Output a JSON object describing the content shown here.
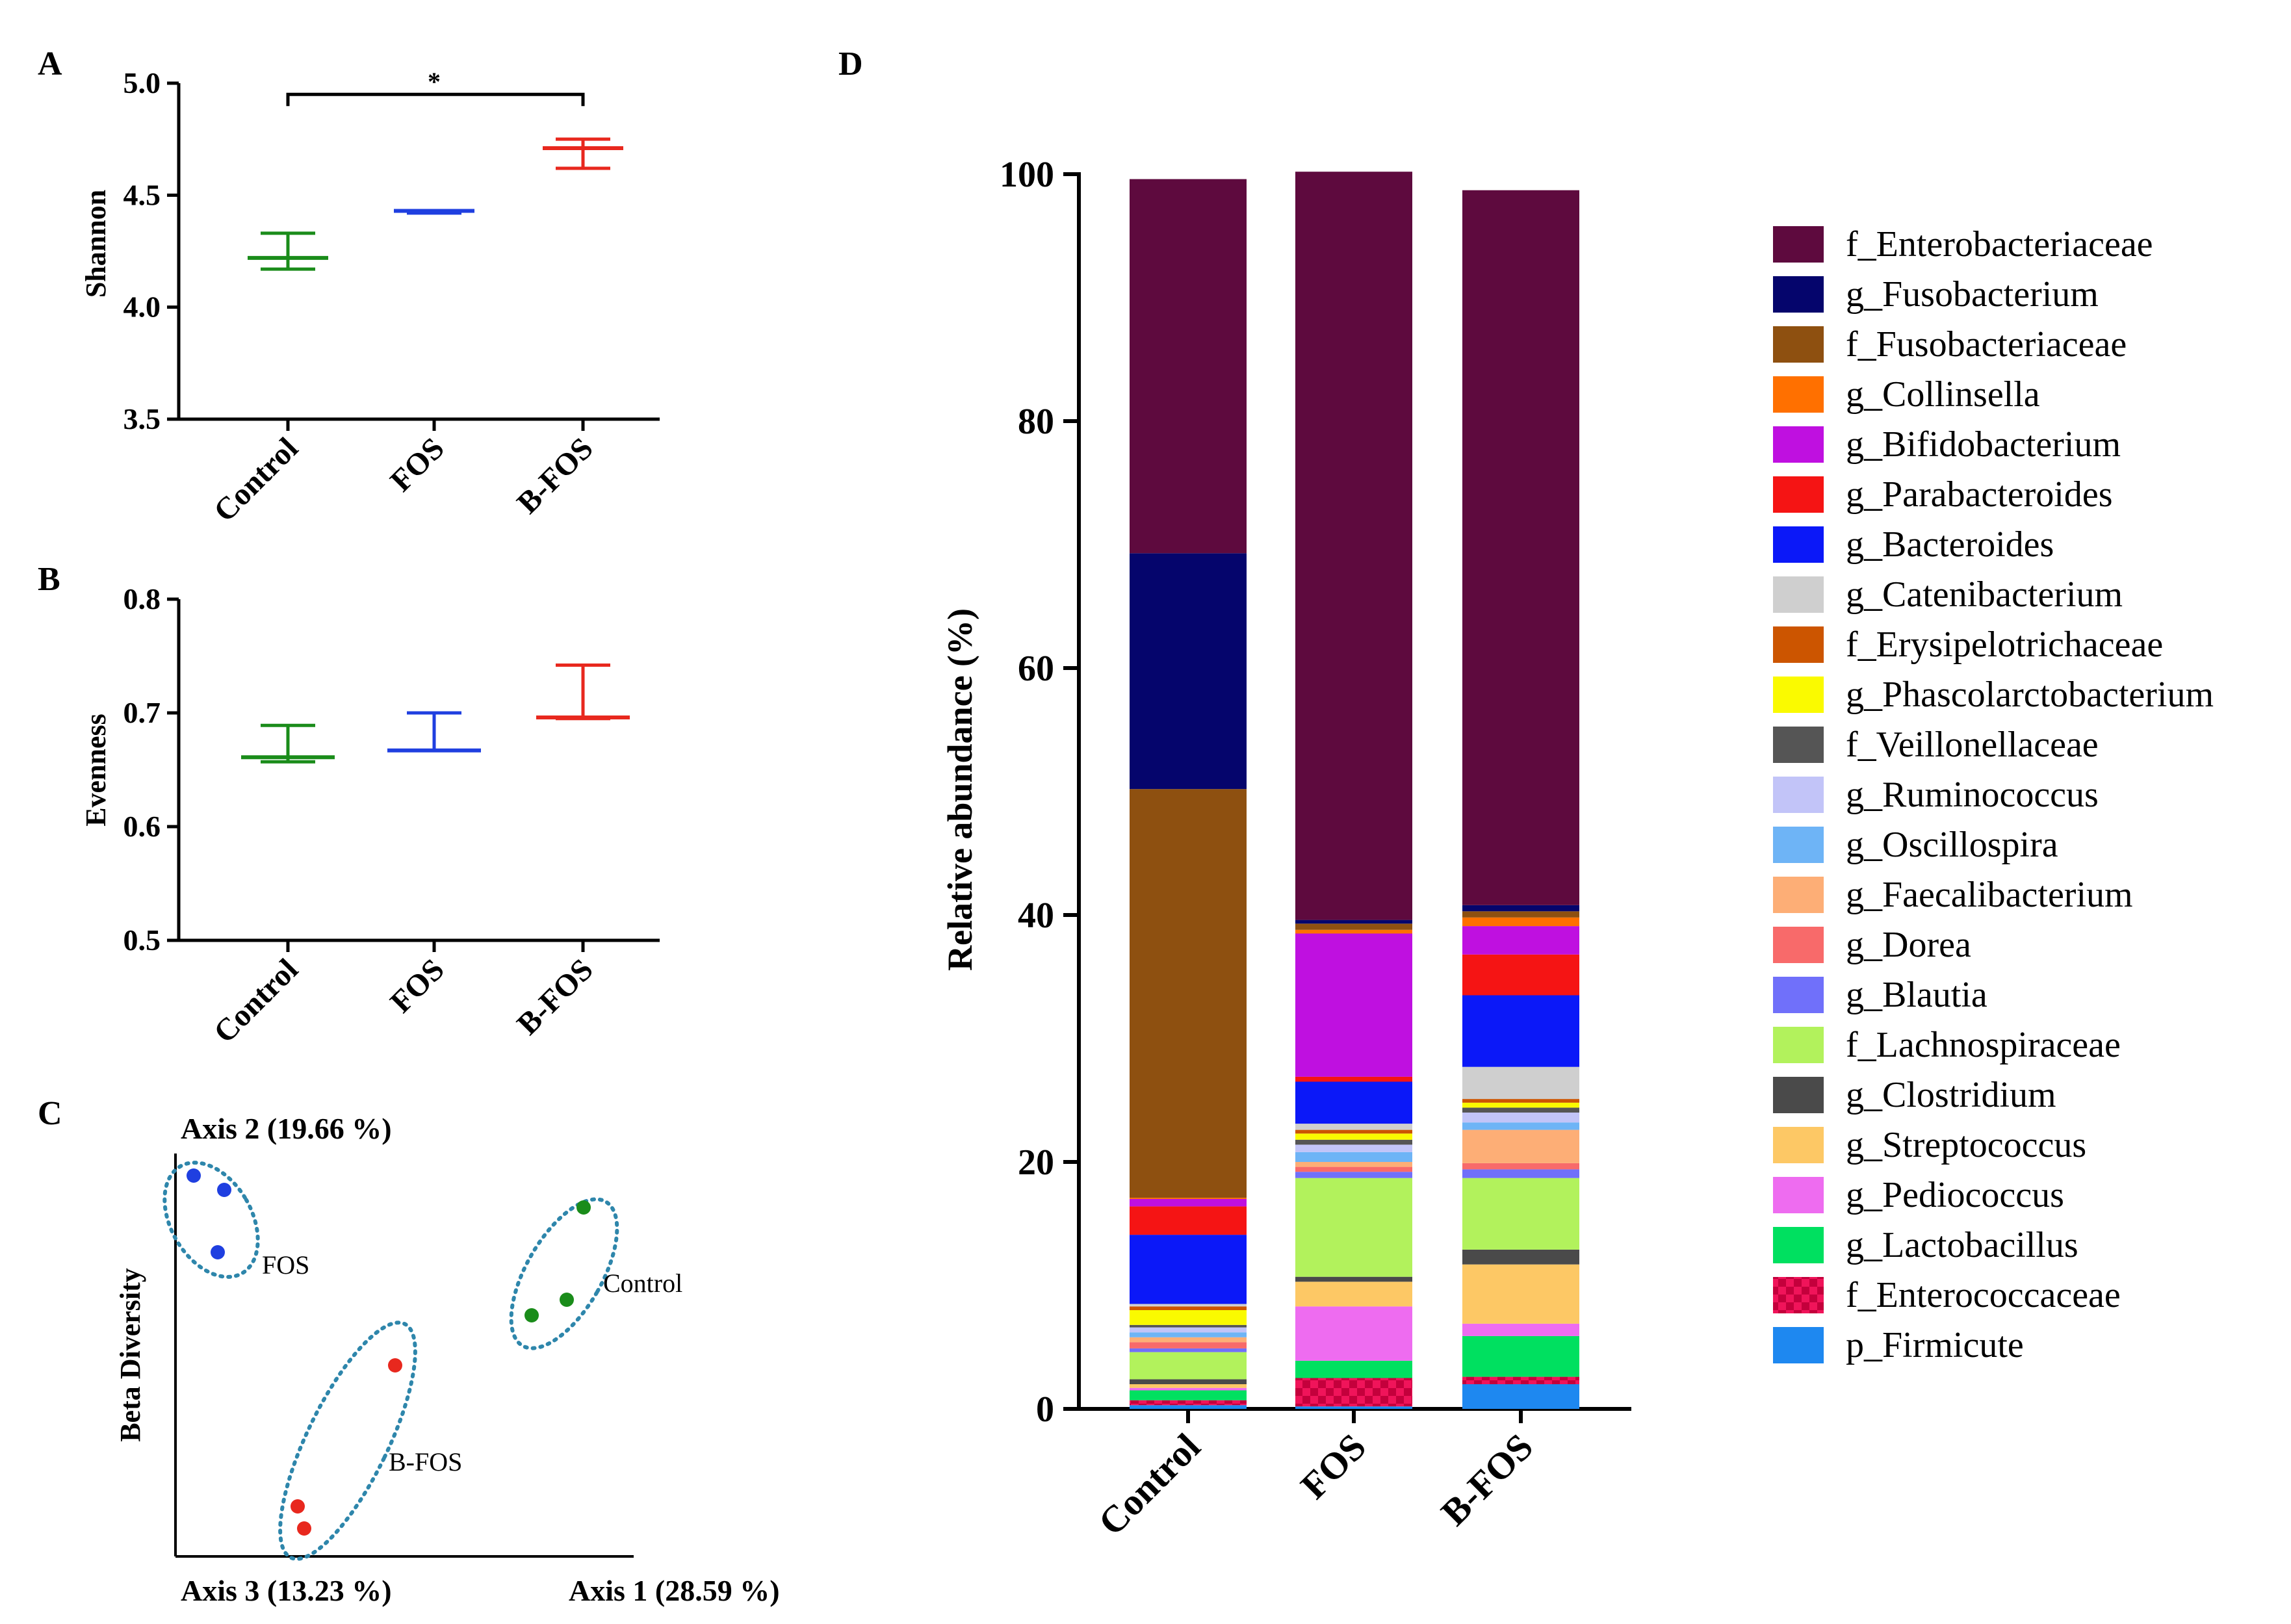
{
  "panels": {
    "A": "A",
    "B": "B",
    "C": "C",
    "D": "D"
  },
  "chart_data": [
    {
      "id": "A",
      "type": "scatter",
      "title": "",
      "ylabel": "Shannon",
      "xlabel": "",
      "ylim": [
        3.5,
        5.0
      ],
      "yticks": [
        "3.5",
        "4.0",
        "4.5",
        "5.0"
      ],
      "yticks_values": [
        3.5,
        4.0,
        4.5,
        5.0
      ],
      "categories": [
        "Control",
        "FOS",
        "B-FOS"
      ],
      "series": [
        {
          "name": "Control",
          "color": "#1a8c1a",
          "mean": 4.22,
          "low": 4.17,
          "high": 4.33
        },
        {
          "name": "FOS",
          "color": "#1f3fe0",
          "mean": 4.43,
          "low": 4.42,
          "high": 4.43
        },
        {
          "name": "B-FOS",
          "color": "#e8281e",
          "mean": 4.71,
          "low": 4.62,
          "high": 4.75
        }
      ],
      "significance": {
        "from": "Control",
        "to": "B-FOS",
        "label": "*",
        "level": 4.95
      }
    },
    {
      "id": "B",
      "type": "scatter",
      "title": "",
      "ylabel": "Evenness",
      "xlabel": "",
      "ylim": [
        0.5,
        0.8
      ],
      "yticks": [
        "0.5",
        "0.6",
        "0.7",
        "0.8"
      ],
      "yticks_values": [
        0.5,
        0.6,
        0.7,
        0.8
      ],
      "categories": [
        "Control",
        "FOS",
        "B-FOS"
      ],
      "series": [
        {
          "name": "Control",
          "color": "#1a8c1a",
          "mean": 0.661,
          "low": 0.657,
          "high": 0.689
        },
        {
          "name": "FOS",
          "color": "#1f3fe0",
          "mean": 0.667,
          "low": 0.667,
          "high": 0.7
        },
        {
          "name": "B-FOS",
          "color": "#e8281e",
          "mean": 0.696,
          "low": 0.695,
          "high": 0.742
        }
      ]
    },
    {
      "id": "C",
      "type": "scatter",
      "title": "",
      "ylabel": "Beta Diversity",
      "axis_labels": {
        "axis2": "Axis 2 (19.66 %)",
        "axis3": "Axis 3 (13.23 %)",
        "axis1": "Axis 1 (28.59 %)"
      },
      "clusters": [
        {
          "name": "FOS",
          "color": "#1f3fe0"
        },
        {
          "name": "Control",
          "color": "#1a8c1a"
        },
        {
          "name": "B-FOS",
          "color": "#e8281e"
        }
      ],
      "ellipse_color": "#2e86ab"
    },
    {
      "id": "D",
      "type": "bar",
      "stacked": true,
      "title": "",
      "xlabel": "",
      "ylabel": "Relative abundance (%)",
      "ylim": [
        0,
        100
      ],
      "yticks": [
        "0",
        "20",
        "40",
        "60",
        "80",
        "100"
      ],
      "yticks_values": [
        0,
        20,
        40,
        60,
        80,
        100
      ],
      "categories": [
        "Control",
        "FOS",
        "B-FOS"
      ],
      "legend_position": "right",
      "series": [
        {
          "name": "p_Firmicute",
          "color": "#1e88f0",
          "values": [
            0.3,
            0.2,
            2.0
          ]
        },
        {
          "name": "f_Enterococcaceae",
          "color": "#f0145a",
          "pattern": true,
          "values": [
            0.4,
            2.3,
            0.6
          ]
        },
        {
          "name": "g_Lactobacillus",
          "color": "#00e060",
          "values": [
            0.8,
            1.4,
            3.3
          ]
        },
        {
          "name": "g_Pediococcus",
          "color": "#ee6cf0",
          "values": [
            0.2,
            4.4,
            1.0
          ]
        },
        {
          "name": "g_Streptococcus",
          "color": "#fdc865",
          "values": [
            0.3,
            2.0,
            4.8
          ]
        },
        {
          "name": "g_Clostridium",
          "color": "#4a4a4a",
          "values": [
            0.4,
            0.4,
            1.2
          ]
        },
        {
          "name": "f_Lachnospiraceae",
          "color": "#b2f25c",
          "values": [
            2.2,
            8.0,
            5.8
          ]
        },
        {
          "name": "g_Blautia",
          "color": "#7070fa",
          "values": [
            0.3,
            0.5,
            0.7
          ]
        },
        {
          "name": "g_Dorea",
          "color": "#f86a6a",
          "values": [
            0.5,
            0.4,
            0.5
          ]
        },
        {
          "name": "g_Faecalibacterium",
          "color": "#fdae76",
          "values": [
            0.4,
            0.4,
            2.7
          ]
        },
        {
          "name": "g_Oscillospira",
          "color": "#6eb4f6",
          "values": [
            0.4,
            0.8,
            0.6
          ]
        },
        {
          "name": "g_Ruminococcus",
          "color": "#c2c4f8",
          "values": [
            0.4,
            0.6,
            0.8
          ]
        },
        {
          "name": "f_Veillonellaceae",
          "color": "#555555",
          "values": [
            0.2,
            0.4,
            0.4
          ]
        },
        {
          "name": "g_Phascolarctobacterium",
          "color": "#fafa00",
          "values": [
            1.2,
            0.5,
            0.4
          ]
        },
        {
          "name": "f_Erysipelotrichaceae",
          "color": "#cc5500",
          "values": [
            0.3,
            0.3,
            0.3
          ]
        },
        {
          "name": "g_Catenibacterium",
          "color": "#cfcfcf",
          "values": [
            0.2,
            0.5,
            2.6
          ]
        },
        {
          "name": "g_Bacteroides",
          "color": "#0b18f8",
          "values": [
            5.6,
            3.4,
            5.8
          ]
        },
        {
          "name": "g_Parabacteroides",
          "color": "#f51414",
          "values": [
            2.3,
            0.4,
            3.3
          ]
        },
        {
          "name": "g_Bifidobacterium",
          "color": "#bf10e0",
          "values": [
            0.6,
            11.6,
            2.3
          ]
        },
        {
          "name": "g_Collinsella",
          "color": "#ff7000",
          "values": [
            0.1,
            0.3,
            0.7
          ]
        },
        {
          "name": "f_Fusobacteriaceae",
          "color": "#8e5010",
          "values": [
            33.1,
            0.5,
            0.5
          ]
        },
        {
          "name": "g_Fusobacterium",
          "color": "#05056c",
          "values": [
            19.1,
            0.3,
            0.5
          ]
        },
        {
          "name": "f_Enterobacteriaceae",
          "color": "#5e0a3e",
          "values": [
            30.3,
            60.6,
            57.9
          ]
        }
      ]
    }
  ]
}
